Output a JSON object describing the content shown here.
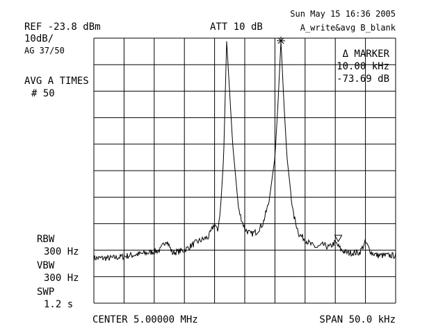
{
  "header": {
    "datetime": "Sun May 15 16:36 2005",
    "ref_level": "REF -23.8 dBm",
    "attenuation": "ATT 10 dB",
    "trace_mode": "A_write&avg B_blank",
    "scale": "10dB/",
    "avg_count": "AG 37/50",
    "avg_label": "AVG A TIMES",
    "avg_value": "# 50"
  },
  "marker": {
    "label": "Δ MARKER",
    "freq": "10.00 kHz",
    "level": "-73.69 dB"
  },
  "settings": {
    "rbw_label": "RBW",
    "rbw_value": "300 Hz",
    "vbw_label": "VBW",
    "vbw_value": "300 Hz",
    "swp_label": "SWP",
    "swp_value": "1.2 s"
  },
  "footer": {
    "center": "CENTER 5.00000 MHz",
    "span": "SPAN 50.0 kHz"
  },
  "colors": {
    "trace": "#000000",
    "grid": "#000000",
    "background": "#ffffff"
  },
  "chart_data": {
    "type": "line",
    "x_unit": "kHz offset from center",
    "y_unit": "dB relative to reference level",
    "xlim": [
      -25,
      25
    ],
    "ylim": [
      -100,
      0
    ],
    "grid": true,
    "divisions": {
      "x": 10,
      "y": 10
    },
    "series": [
      {
        "x": [
          -25,
          -22,
          -19,
          -16,
          -14,
          -13,
          -12,
          -10,
          -8,
          -6,
          -5,
          -4.5,
          -4,
          -3.5,
          -3,
          -2,
          -1,
          0,
          1,
          2,
          3,
          4,
          5,
          5.5,
          6,
          6.5,
          7,
          8,
          9,
          10,
          11,
          12,
          13,
          14,
          15,
          16,
          17,
          18,
          19,
          20,
          21,
          22,
          23,
          25
        ],
        "y": [
          -83,
          -83,
          -82,
          -81,
          -80,
          -76,
          -81,
          -80,
          -77,
          -75,
          -70,
          -73,
          -64,
          -45,
          -1,
          -40,
          -65,
          -72,
          -74,
          -73,
          -70,
          -62,
          -45,
          -25,
          -1,
          -25,
          -45,
          -66,
          -74,
          -76,
          -78,
          -79,
          -78,
          -79,
          -77,
          -80,
          -81,
          -81,
          -81,
          -77,
          -81,
          -82,
          -82,
          -82
        ]
      }
    ],
    "markers": [
      {
        "symbol": "asterisk",
        "x": 6,
        "y": -1
      },
      {
        "symbol": "triangle-down",
        "x": 15.5,
        "y": -77
      }
    ]
  }
}
